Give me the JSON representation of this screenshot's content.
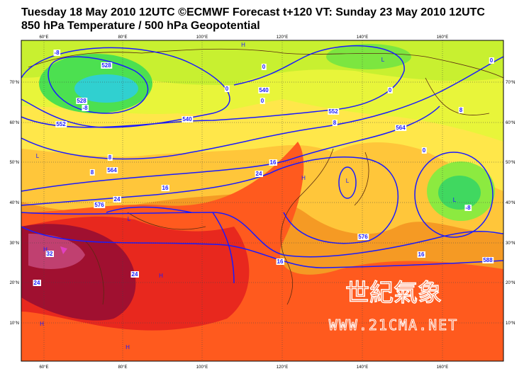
{
  "header": {
    "line1": "Tuesday 18 May 2010 12UTC ©ECMWF Forecast t+120 VT: Sunday 23 May 2010 12UTC",
    "line2": "850 hPa Temperature / 500 hPa Geopotential"
  },
  "map": {
    "lon_labels": [
      "60°E",
      "80°E",
      "100°E",
      "120°E",
      "140°E",
      "160°E"
    ],
    "lat_labels": [
      "70°N",
      "60°N",
      "50°N",
      "40°N",
      "30°N",
      "20°N",
      "10°N"
    ],
    "contour_labels": [
      "-8",
      "-8",
      "0",
      "0",
      "0",
      "0",
      "0",
      "0",
      "8",
      "8",
      "8",
      "8",
      "16",
      "16",
      "16",
      "16",
      "24",
      "24",
      "24",
      "24",
      "32",
      "-8",
      "528",
      "528",
      "540",
      "540",
      "552",
      "552",
      "564",
      "564",
      "576",
      "576",
      "588"
    ],
    "pressure_centers": [
      "H",
      "L",
      "L",
      "H",
      "L",
      "L",
      "H",
      "H",
      "H",
      "H",
      "L"
    ],
    "watermark": {
      "title": "世紀氣象",
      "url": "WWW.21CMA.NET"
    }
  }
}
